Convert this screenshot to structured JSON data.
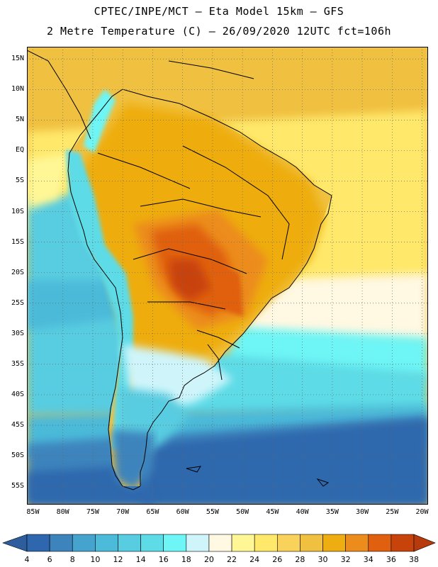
{
  "header": {
    "line1": "CPTEC/INPE/MCT –  Eta Model 15km – GFS",
    "line2": "2 Metre Temperature (C) – 26/09/2020 12UTC fct=106h"
  },
  "map": {
    "lon_range": [
      -86,
      -19
    ],
    "lat_range": [
      17,
      -58
    ],
    "lat_labels": [
      {
        "lat": 15,
        "text": "15N"
      },
      {
        "lat": 10,
        "text": "10N"
      },
      {
        "lat": 5,
        "text": "5N"
      },
      {
        "lat": 0,
        "text": "EQ"
      },
      {
        "lat": -5,
        "text": "5S"
      },
      {
        "lat": -10,
        "text": "10S"
      },
      {
        "lat": -15,
        "text": "15S"
      },
      {
        "lat": -20,
        "text": "20S"
      },
      {
        "lat": -25,
        "text": "25S"
      },
      {
        "lat": -30,
        "text": "30S"
      },
      {
        "lat": -35,
        "text": "35S"
      },
      {
        "lat": -40,
        "text": "40S"
      },
      {
        "lat": -45,
        "text": "45S"
      },
      {
        "lat": -50,
        "text": "50S"
      },
      {
        "lat": -55,
        "text": "55S"
      }
    ],
    "lon_labels": [
      {
        "lon": -85,
        "text": "85W"
      },
      {
        "lon": -80,
        "text": "80W"
      },
      {
        "lon": -75,
        "text": "75W"
      },
      {
        "lon": -70,
        "text": "70W"
      },
      {
        "lon": -65,
        "text": "65W"
      },
      {
        "lon": -60,
        "text": "60W"
      },
      {
        "lon": -55,
        "text": "55W"
      },
      {
        "lon": -50,
        "text": "50W"
      },
      {
        "lon": -45,
        "text": "45W"
      },
      {
        "lon": -40,
        "text": "40W"
      },
      {
        "lon": -35,
        "text": "35W"
      },
      {
        "lon": -30,
        "text": "30W"
      },
      {
        "lon": -25,
        "text": "25W"
      },
      {
        "lon": -20,
        "text": "20W"
      }
    ]
  },
  "colorbar": {
    "levels": [
      "4",
      "6",
      "8",
      "10",
      "12",
      "14",
      "16",
      "18",
      "20",
      "22",
      "24",
      "26",
      "28",
      "30",
      "32",
      "34",
      "36",
      "38"
    ],
    "colors": [
      "#2e67ad",
      "#3d84bd",
      "#45a3cd",
      "#4cbad9",
      "#58cce0",
      "#5ddbe6",
      "#6ef5f5",
      "#cff5fb",
      "#fff8e2",
      "#fff796",
      "#ffe86a",
      "#f8d25a",
      "#f0c040",
      "#eead11",
      "#ec8c1c",
      "#e06010",
      "#c8430c"
    ],
    "low_color": "#2e5d9e",
    "high_color": "#b63a0c"
  }
}
